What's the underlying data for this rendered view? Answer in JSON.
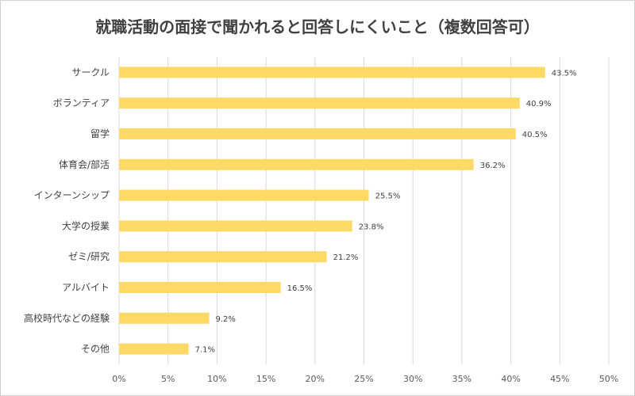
{
  "chart_data": {
    "type": "bar",
    "orientation": "horizontal",
    "title": "就職活動の面接で聞かれると回答しにくいこと（複数回答可）",
    "categories": [
      "サークル",
      "ボランティア",
      "留学",
      "体育会/部活",
      "インターンシップ",
      "大学の授業",
      "ゼミ/研究",
      "アルバイト",
      "高校時代などの経験",
      "その他"
    ],
    "values": [
      43.5,
      40.9,
      40.5,
      36.2,
      25.5,
      23.8,
      21.2,
      16.5,
      9.2,
      7.1
    ],
    "data_labels": [
      "43.5%",
      "40.9%",
      "40.5%",
      "36.2%",
      "25.5%",
      "23.8%",
      "21.2%",
      "16.5%",
      "9.2%",
      "7.1%"
    ],
    "xlim": [
      0,
      50
    ],
    "xticks": [
      "0%",
      "5%",
      "10%",
      "15%",
      "20%",
      "25%",
      "30%",
      "35%",
      "40%",
      "45%",
      "50%"
    ],
    "grid": true,
    "bar_color": "#FFD966",
    "grid_color": "#D9D9D9"
  }
}
